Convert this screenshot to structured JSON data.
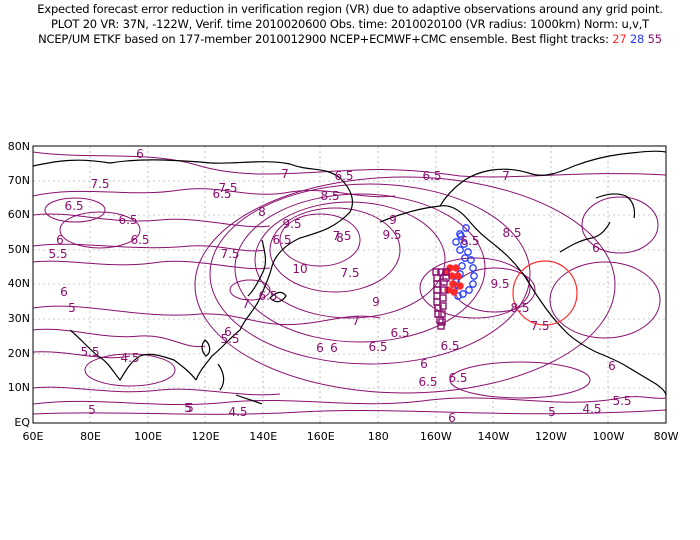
{
  "header": {
    "line1": "Expected forecast error reduction in verification region (VR) due to adaptive observations around any grid point.",
    "line2": "PLOT 20 VR: 37N, -122W, Verif. time 2010020600 Obs. time: 2010020100 (VR radius: 1000km) Norm: u,v,T",
    "line3_prefix": "NCEP/UM ETKF based on 177-member 2010012900 NCEP+ECMWF+CMC ensemble. Best flight tracks:",
    "track_red": "27",
    "track_blue": "28",
    "track_purple": "55"
  },
  "axes": {
    "lat_labels": [
      "80N",
      "70N",
      "60N",
      "50N",
      "40N",
      "30N",
      "20N",
      "10N",
      "EQ"
    ],
    "lon_labels": [
      "60E",
      "80E",
      "100E",
      "120E",
      "140E",
      "160E",
      "180",
      "160W",
      "140W",
      "120W",
      "100W",
      "80W"
    ]
  },
  "contour_labels": [
    "6",
    "7.5",
    "6.5",
    "7",
    "6.5",
    "7",
    "6.5",
    "6.5",
    "6",
    "6.5",
    "8",
    "6.5",
    "8.5",
    "7.5",
    "7.5",
    "9.5",
    "9",
    "8",
    "6.5",
    "5.5",
    "6.5",
    "10",
    "7.5",
    "9.5",
    "8.5",
    "6",
    "7.5",
    "6.5",
    "9.5",
    "5",
    "7",
    "9",
    "6",
    "7",
    "6.5",
    "8.5",
    "5.5",
    "6.5",
    "6",
    "7.5",
    "4.5",
    "6.5",
    "5.5",
    "6",
    "6",
    "6.5",
    "6",
    "6",
    "5",
    "5",
    "4.5",
    "6.5",
    "6",
    "5",
    "4.5",
    "5.5",
    "5"
  ],
  "colors": {
    "contour": "#8a0f6f",
    "track_red": "#ff2a2a",
    "track_blue": "#2a3cff",
    "track_purple": "#8a0f6f",
    "verification_circle": "#ff2a2a",
    "coast": "#000000",
    "grid": "#9a9a9a"
  },
  "symbols": {
    "verification_region": "red-circle",
    "red_track_marker": "circle-icon",
    "blue_track_marker": "circle-icon",
    "purple_track_marker": "square-icon"
  }
}
